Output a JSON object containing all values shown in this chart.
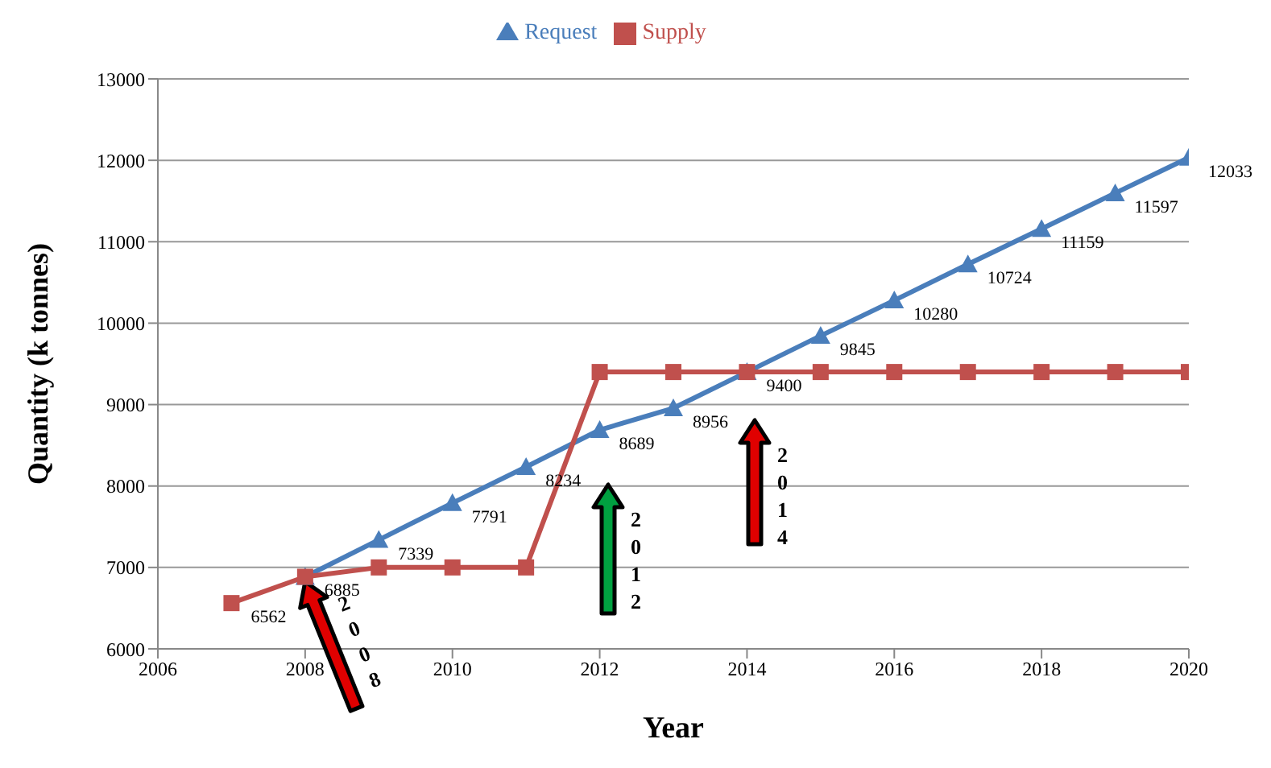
{
  "chart_data": {
    "type": "line",
    "xlabel": "Year",
    "ylabel": "Quantity (k tonnes)",
    "xlim": [
      2006,
      2020
    ],
    "xticks": [
      2006,
      2008,
      2010,
      2012,
      2014,
      2016,
      2018,
      2020
    ],
    "ylim": [
      6000,
      13000
    ],
    "yticks": [
      6000,
      7000,
      8000,
      9000,
      10000,
      11000,
      12000,
      13000
    ],
    "grid": "y",
    "legend": "top",
    "series": [
      {
        "name": "Request",
        "color": "#4a7ebb",
        "marker": "triangle",
        "x": [
          2008,
          2009,
          2010,
          2011,
          2012,
          2013,
          2014,
          2015,
          2016,
          2017,
          2018,
          2019,
          2020
        ],
        "values": [
          6885,
          7339,
          7791,
          8234,
          8689,
          8956,
          9400,
          9845,
          10280,
          10724,
          11159,
          11597,
          12033
        ],
        "value_labels": [
          "6885",
          "7339",
          "7791",
          "8234",
          "8689",
          "8956",
          "9400",
          "9845",
          "10280",
          "10724",
          "11159",
          "11597",
          "12033"
        ]
      },
      {
        "name": "Supply",
        "color": "#c0504d",
        "marker": "square",
        "x": [
          2007,
          2008,
          2009,
          2010,
          2011,
          2012,
          2013,
          2014,
          2015,
          2016,
          2017,
          2018,
          2019,
          2020
        ],
        "values": [
          6562,
          6885,
          7000,
          7000,
          7000,
          9400,
          9400,
          9400,
          9400,
          9400,
          9400,
          9400,
          9400,
          9400
        ],
        "value_labels": [
          "6562",
          null,
          null,
          null,
          null,
          null,
          null,
          null,
          null,
          null,
          null,
          null,
          null,
          null
        ]
      }
    ],
    "annotations": [
      {
        "text": "2008",
        "x": 2008,
        "y": 6885
      },
      "2012",
      "2014"
    ]
  }
}
